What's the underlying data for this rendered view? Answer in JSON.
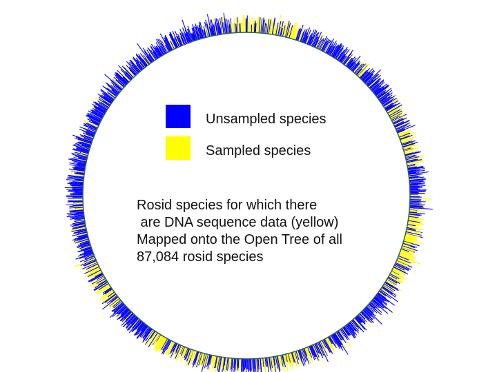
{
  "legend": {
    "items": [
      {
        "label": "Unsampled species",
        "color": "#0000ff"
      },
      {
        "label": "Sampled species",
        "color": "#ffff00"
      }
    ]
  },
  "caption": {
    "lines": [
      "Rosid species for which there",
      " are DNA sequence data (yellow)",
      "Mapped onto the Open Tree of all",
      "87,084 rosid species"
    ]
  },
  "colors": {
    "unsampled": "#0000ff",
    "sampled": "#ffff00",
    "circle_outline": "#2f5f5f"
  }
}
